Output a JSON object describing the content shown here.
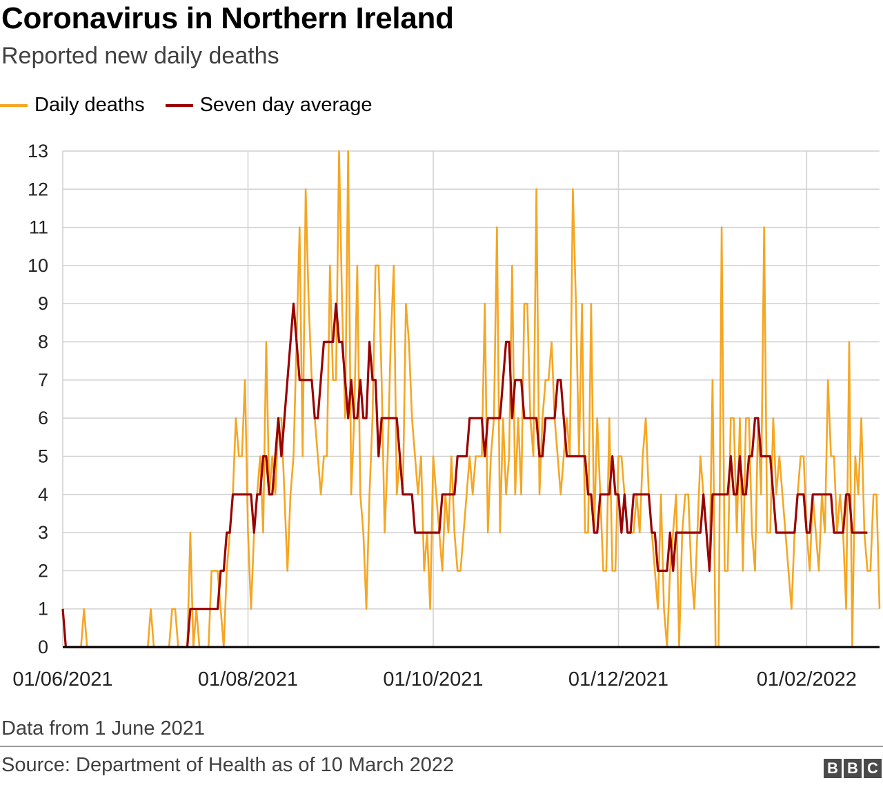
{
  "title": "Coronavirus in Northern Ireland",
  "subtitle": "Reported new daily deaths",
  "note": "Data from 1 June 2021",
  "source": "Source: Department of Health as of 10 March 2022",
  "logo": [
    "B",
    "B",
    "C"
  ],
  "colors": {
    "daily": "#f5a623",
    "average": "#990000",
    "grid": "#d0d0d0",
    "axis": "#000000"
  },
  "chart_data": {
    "type": "line",
    "title": "Coronavirus in Northern Ireland",
    "subtitle": "Reported new daily deaths",
    "x_start_date": "2021-06-01",
    "x_ticks": [
      {
        "label": "01/06/2021",
        "date": "2021-06-01"
      },
      {
        "label": "01/08/2021",
        "date": "2021-08-01"
      },
      {
        "label": "01/10/2021",
        "date": "2021-10-01"
      },
      {
        "label": "01/12/2021",
        "date": "2021-12-01"
      },
      {
        "label": "01/02/2022",
        "date": "2022-02-01"
      }
    ],
    "ylim": [
      0,
      13
    ],
    "y_ticks": [
      0,
      1,
      2,
      3,
      4,
      5,
      6,
      7,
      8,
      9,
      10,
      11,
      12,
      13
    ],
    "grid": true,
    "legend_position": "top-left",
    "series": [
      {
        "name": "Daily deaths",
        "color": "#f5a623",
        "values": [
          1,
          0,
          0,
          0,
          0,
          0,
          0,
          1,
          0,
          0,
          0,
          0,
          0,
          0,
          0,
          0,
          0,
          0,
          0,
          0,
          0,
          0,
          0,
          0,
          0,
          0,
          0,
          0,
          0,
          1,
          0,
          0,
          0,
          0,
          0,
          0,
          1,
          1,
          0,
          0,
          0,
          0,
          3,
          0,
          1,
          0,
          0,
          0,
          0,
          2,
          2,
          2,
          1,
          0,
          2,
          3,
          4,
          6,
          5,
          5,
          7,
          3,
          1,
          3,
          4,
          5,
          3,
          8,
          4,
          5,
          4,
          6,
          6,
          4,
          2,
          4,
          5,
          8,
          11,
          5,
          12,
          9,
          7,
          6,
          5,
          4,
          5,
          5,
          10,
          7,
          7,
          13,
          9,
          6,
          13,
          4,
          6,
          10,
          4,
          3,
          1,
          4,
          6,
          10,
          10,
          7,
          3,
          5,
          8,
          10,
          4,
          5,
          4,
          9,
          8,
          6,
          5,
          4,
          5,
          2,
          3,
          1,
          5,
          4,
          3,
          2,
          4,
          3,
          5,
          3,
          2,
          2,
          3,
          4,
          5,
          4,
          5,
          5,
          5,
          9,
          3,
          5,
          6,
          11,
          3,
          6,
          4,
          5,
          10,
          4,
          6,
          4,
          9,
          9,
          6,
          5,
          12,
          4,
          6,
          7,
          7,
          8,
          6,
          5,
          4,
          5,
          6,
          5,
          12,
          9,
          5,
          9,
          3,
          3,
          9,
          3,
          6,
          4,
          2,
          2,
          6,
          2,
          2,
          5,
          5,
          4,
          3,
          3,
          3,
          4,
          3,
          5,
          6,
          4,
          3,
          2,
          1,
          4,
          1,
          0,
          2,
          3,
          4,
          0,
          3,
          4,
          4,
          2,
          1,
          3,
          5,
          4,
          3,
          2,
          7,
          0,
          0,
          11,
          2,
          2,
          6,
          6,
          3,
          6,
          2,
          6,
          6,
          3,
          2,
          6,
          4,
          11,
          3,
          3,
          6,
          4,
          5,
          4,
          3,
          2,
          1,
          3,
          4,
          5,
          5,
          3,
          2,
          4,
          3,
          2,
          4,
          3,
          7,
          5,
          5,
          3,
          4,
          3,
          1,
          8,
          0,
          5,
          4,
          6,
          3,
          2,
          2,
          4,
          4,
          1
        ]
      },
      {
        "name": "Seven day average",
        "color": "#990000",
        "values": [
          1,
          0,
          0,
          0,
          0,
          0,
          0,
          0,
          0,
          0,
          0,
          0,
          0,
          0,
          0,
          0,
          0,
          0,
          0,
          0,
          0,
          0,
          0,
          0,
          0,
          0,
          0,
          0,
          0,
          0,
          0,
          0,
          0,
          0,
          0,
          0,
          0,
          0,
          0,
          0,
          0,
          0,
          1,
          1,
          1,
          1,
          1,
          1,
          1,
          1,
          1,
          1,
          2,
          2,
          3,
          3,
          4,
          4,
          4,
          4,
          4,
          4,
          4,
          3,
          4,
          4,
          5,
          5,
          4,
          4,
          5,
          6,
          5,
          6,
          7,
          8,
          9,
          8,
          7,
          7,
          7,
          7,
          7,
          6,
          6,
          7,
          8,
          8,
          8,
          8,
          9,
          8,
          8,
          7,
          6,
          7,
          6,
          6,
          7,
          6,
          6,
          8,
          7,
          7,
          5,
          6,
          6,
          6,
          6,
          6,
          6,
          5,
          4,
          4,
          4,
          4,
          3,
          3,
          3,
          3,
          3,
          3,
          3,
          3,
          3,
          4,
          4,
          4,
          4,
          4,
          5,
          5,
          5,
          5,
          6,
          6,
          6,
          6,
          6,
          5,
          6,
          6,
          6,
          6,
          6,
          7,
          8,
          8,
          6,
          7,
          7,
          7,
          6,
          6,
          6,
          6,
          6,
          5,
          5,
          6,
          6,
          6,
          6,
          7,
          7,
          6,
          5,
          5,
          5,
          5,
          5,
          5,
          5,
          4,
          4,
          3,
          3,
          4,
          4,
          4,
          4,
          5,
          4,
          4,
          3,
          4,
          3,
          3,
          4,
          4,
          4,
          4,
          4,
          4,
          3,
          3,
          2,
          2,
          2,
          2,
          3,
          2,
          3,
          3,
          3,
          3,
          3,
          3,
          3,
          3,
          3,
          4,
          3,
          2,
          4,
          4,
          4,
          4,
          4,
          4,
          5,
          4,
          4,
          5,
          4,
          4,
          5,
          5,
          6,
          6,
          5,
          5,
          5,
          5,
          4,
          3,
          3,
          3,
          3,
          3,
          3,
          3,
          4,
          4,
          4,
          3,
          3,
          4,
          4,
          4,
          4,
          4,
          4,
          4,
          3,
          3,
          3,
          3,
          4,
          4,
          3,
          3,
          3,
          3,
          3,
          3
        ]
      }
    ]
  }
}
